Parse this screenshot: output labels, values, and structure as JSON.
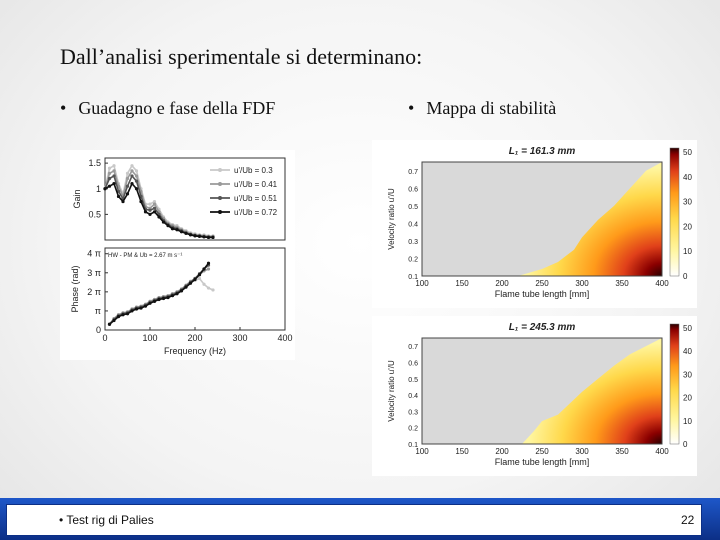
{
  "slide": {
    "title": "Dall’analisi sperimentale si determinano:",
    "bullets": [
      {
        "text": "Guadagno e fase della FDF"
      },
      {
        "text": "Mappa di stabilità"
      }
    ],
    "footer_text": "Test rig di Palies",
    "page_number": "22",
    "bullet_char": "•"
  },
  "colors": {
    "footer_blue": "#0c2f86",
    "heat_low": "#fff6a0",
    "heat_high": "#2a0000",
    "stable_region": "#d9d9d9"
  },
  "chart_data": [
    {
      "type": "line",
      "name_hint": "gain",
      "xlim": [
        0,
        400
      ],
      "ylim": [
        0,
        1.6
      ],
      "yticks": [
        {
          "v": 1.5,
          "label": "1.5"
        },
        {
          "v": 1,
          "label": "1"
        },
        {
          "v": 0.5,
          "label": "0.5"
        }
      ],
      "ylabel": "Gain",
      "legend": {
        "placement": "right"
      },
      "series": [
        {
          "name": "u'/Ub = 0.3",
          "color": "#c8c8c8",
          "x": [
            0,
            10,
            20,
            30,
            40,
            50,
            60,
            70,
            80,
            90,
            100,
            110,
            120,
            130,
            140,
            150,
            160,
            170,
            180,
            190,
            200,
            210,
            220,
            230,
            240
          ],
          "y": [
            1.0,
            1.4,
            1.45,
            1.1,
            0.9,
            1.3,
            1.45,
            1.35,
            1.0,
            0.7,
            0.7,
            0.75,
            0.6,
            0.45,
            0.35,
            0.3,
            0.28,
            0.22,
            0.18,
            0.14,
            0.12,
            0.1,
            0.1,
            0.08,
            0.08
          ]
        },
        {
          "name": "u'/Ub = 0.41",
          "color": "#9a9a9a",
          "x": [
            0,
            10,
            20,
            30,
            40,
            50,
            60,
            70,
            80,
            90,
            100,
            110,
            120,
            130,
            140,
            150,
            160,
            170,
            180,
            190,
            200,
            210,
            220,
            230,
            240
          ],
          "y": [
            1.0,
            1.3,
            1.35,
            1.05,
            0.85,
            1.2,
            1.35,
            1.25,
            0.95,
            0.65,
            0.62,
            0.7,
            0.55,
            0.42,
            0.32,
            0.28,
            0.25,
            0.2,
            0.16,
            0.12,
            0.1,
            0.09,
            0.08,
            0.07,
            0.07
          ]
        },
        {
          "name": "u'/Ub = 0.51",
          "color": "#555555",
          "x": [
            0,
            10,
            20,
            30,
            40,
            50,
            60,
            70,
            80,
            90,
            100,
            110,
            120,
            130,
            140,
            150,
            160,
            170,
            180,
            190,
            200,
            210,
            220,
            230,
            240
          ],
          "y": [
            1.0,
            1.2,
            1.25,
            0.95,
            0.8,
            1.05,
            1.25,
            1.15,
            0.85,
            0.6,
            0.58,
            0.62,
            0.5,
            0.38,
            0.3,
            0.25,
            0.22,
            0.18,
            0.14,
            0.11,
            0.09,
            0.08,
            0.07,
            0.06,
            0.06
          ]
        },
        {
          "name": "u'/Ub = 0.72",
          "color": "#111111",
          "x": [
            0,
            10,
            20,
            30,
            40,
            50,
            60,
            70,
            80,
            90,
            100,
            110,
            120,
            130,
            140,
            150,
            160,
            170,
            180,
            190,
            200,
            210,
            220,
            230,
            240
          ],
          "y": [
            1.0,
            1.05,
            1.1,
            0.85,
            0.75,
            0.9,
            1.1,
            1.0,
            0.75,
            0.55,
            0.5,
            0.55,
            0.45,
            0.35,
            0.28,
            0.22,
            0.2,
            0.16,
            0.13,
            0.1,
            0.08,
            0.07,
            0.06,
            0.05,
            0.05
          ]
        }
      ]
    },
    {
      "type": "line",
      "name_hint": "phase",
      "xlim": [
        0,
        400
      ],
      "ylim": [
        0,
        4.3
      ],
      "xticks": [
        {
          "v": 0,
          "label": "0"
        },
        {
          "v": 100,
          "label": "100"
        },
        {
          "v": 200,
          "label": "200"
        },
        {
          "v": 300,
          "label": "300"
        },
        {
          "v": 400,
          "label": "400"
        }
      ],
      "yticks": [
        {
          "v": 4,
          "label": "4 π"
        },
        {
          "v": 3,
          "label": "3 π"
        },
        {
          "v": 2,
          "label": "2 π"
        },
        {
          "v": 1,
          "label": "π"
        },
        {
          "v": 0,
          "label": "0"
        }
      ],
      "xlabel": "Frequency (Hz)",
      "ylabel": "Phase (rad)",
      "annotation": "HW - PM & Ub = 2.67 m s⁻¹",
      "series": [
        {
          "name": "u'/Ub = 0.3",
          "color": "#c8c8c8",
          "x": [
            10,
            20,
            30,
            40,
            50,
            60,
            70,
            80,
            90,
            100,
            110,
            120,
            130,
            140,
            150,
            160,
            170,
            180,
            190,
            200,
            210,
            220,
            230,
            240
          ],
          "y": [
            0.3,
            0.6,
            0.8,
            0.9,
            0.9,
            1.1,
            1.2,
            1.2,
            1.3,
            1.5,
            1.6,
            1.7,
            1.75,
            1.8,
            1.9,
            2.0,
            2.1,
            2.3,
            2.5,
            2.6,
            2.7,
            2.4,
            2.2,
            2.1
          ]
        },
        {
          "name": "u'/Ub = 0.41",
          "color": "#9a9a9a",
          "x": [
            10,
            20,
            30,
            40,
            50,
            60,
            70,
            80,
            90,
            100,
            110,
            120,
            130,
            140,
            150,
            160,
            170,
            180,
            190,
            200,
            210,
            220,
            230
          ],
          "y": [
            0.3,
            0.6,
            0.8,
            0.9,
            0.95,
            1.1,
            1.2,
            1.25,
            1.35,
            1.5,
            1.6,
            1.7,
            1.75,
            1.8,
            1.9,
            2.0,
            2.15,
            2.35,
            2.55,
            2.7,
            2.9,
            3.1,
            3.2
          ]
        },
        {
          "name": "u'/Ub = 0.51",
          "color": "#555555",
          "x": [
            10,
            20,
            30,
            40,
            50,
            60,
            70,
            80,
            90,
            100,
            110,
            120,
            130,
            140,
            150,
            160,
            170,
            180,
            190,
            200,
            210,
            220,
            230
          ],
          "y": [
            0.3,
            0.55,
            0.75,
            0.85,
            0.9,
            1.05,
            1.15,
            1.2,
            1.3,
            1.45,
            1.55,
            1.65,
            1.7,
            1.75,
            1.85,
            1.95,
            2.1,
            2.3,
            2.5,
            2.7,
            2.95,
            3.2,
            3.4
          ]
        },
        {
          "name": "u'/Ub = 0.72",
          "color": "#111111",
          "x": [
            10,
            20,
            30,
            40,
            50,
            60,
            70,
            80,
            90,
            100,
            110,
            120,
            130,
            140,
            150,
            160,
            170,
            180,
            190,
            200,
            210,
            220,
            230
          ],
          "y": [
            0.3,
            0.5,
            0.7,
            0.8,
            0.85,
            1.0,
            1.1,
            1.15,
            1.25,
            1.4,
            1.5,
            1.6,
            1.65,
            1.7,
            1.8,
            1.9,
            2.05,
            2.25,
            2.45,
            2.65,
            2.9,
            3.2,
            3.5
          ]
        }
      ]
    },
    {
      "type": "heatmap",
      "name_hint": "map1",
      "title": "L₁ = 161.3 mm",
      "xlabel": "Flame tube length [mm]",
      "ylabel": "Velocity ratio u'/U",
      "xlim": [
        100,
        400
      ],
      "ylim": [
        0.1,
        0.75
      ],
      "xticks": [
        {
          "v": 100,
          "label": "100"
        },
        {
          "v": 150,
          "label": "150"
        },
        {
          "v": 200,
          "label": "200"
        },
        {
          "v": 250,
          "label": "250"
        },
        {
          "v": 300,
          "label": "300"
        },
        {
          "v": 350,
          "label": "350"
        },
        {
          "v": 400,
          "label": "400"
        }
      ],
      "yticks": [
        {
          "v": 0.1,
          "label": "0.1"
        },
        {
          "v": 0.2,
          "label": "0.2"
        },
        {
          "v": 0.3,
          "label": "0.3"
        },
        {
          "v": 0.4,
          "label": "0.4"
        },
        {
          "v": 0.5,
          "label": "0.5"
        },
        {
          "v": 0.6,
          "label": "0.6"
        },
        {
          "v": 0.7,
          "label": "0.7"
        }
      ],
      "colorbar": {
        "min": 0,
        "max": 50,
        "ticks": [
          {
            "v": 0,
            "label": "0"
          },
          {
            "v": 10,
            "label": "10"
          },
          {
            "v": 20,
            "label": "20"
          },
          {
            "v": 30,
            "label": "30"
          },
          {
            "v": 40,
            "label": "40"
          },
          {
            "v": 50,
            "label": "50"
          }
        ]
      },
      "boundary": {
        "x": [
          220,
          250,
          270,
          290,
          300,
          320,
          340,
          360,
          380,
          400
        ],
        "y": [
          0.1,
          0.14,
          0.18,
          0.25,
          0.32,
          0.42,
          0.5,
          0.6,
          0.7,
          0.75
        ]
      },
      "peak": {
        "x": 400,
        "y": 0.1,
        "value": 50
      }
    },
    {
      "type": "heatmap",
      "name_hint": "map2",
      "title": "L₁ = 245.3 mm",
      "xlabel": "Flame tube length [mm]",
      "ylabel": "Velocity ratio u'/U",
      "xlim": [
        100,
        400
      ],
      "ylim": [
        0.1,
        0.75
      ],
      "xticks": [
        {
          "v": 100,
          "label": "100"
        },
        {
          "v": 150,
          "label": "150"
        },
        {
          "v": 200,
          "label": "200"
        },
        {
          "v": 250,
          "label": "250"
        },
        {
          "v": 300,
          "label": "300"
        },
        {
          "v": 350,
          "label": "350"
        },
        {
          "v": 400,
          "label": "400"
        }
      ],
      "yticks": [
        {
          "v": 0.1,
          "label": "0.1"
        },
        {
          "v": 0.2,
          "label": "0.2"
        },
        {
          "v": 0.3,
          "label": "0.3"
        },
        {
          "v": 0.4,
          "label": "0.4"
        },
        {
          "v": 0.5,
          "label": "0.5"
        },
        {
          "v": 0.6,
          "label": "0.6"
        },
        {
          "v": 0.7,
          "label": "0.7"
        }
      ],
      "colorbar": {
        "min": 0,
        "max": 50,
        "ticks": [
          {
            "v": 0,
            "label": "0"
          },
          {
            "v": 10,
            "label": "10"
          },
          {
            "v": 20,
            "label": "20"
          },
          {
            "v": 30,
            "label": "30"
          },
          {
            "v": 40,
            "label": "40"
          },
          {
            "v": 50,
            "label": "50"
          }
        ]
      },
      "boundary": {
        "x": [
          225,
          240,
          250,
          270,
          285,
          300,
          320,
          340,
          360,
          380,
          400
        ],
        "y": [
          0.1,
          0.18,
          0.24,
          0.28,
          0.35,
          0.42,
          0.5,
          0.58,
          0.65,
          0.7,
          0.75
        ]
      },
      "peak": {
        "x": 400,
        "y": 0.1,
        "value": 50
      }
    }
  ]
}
